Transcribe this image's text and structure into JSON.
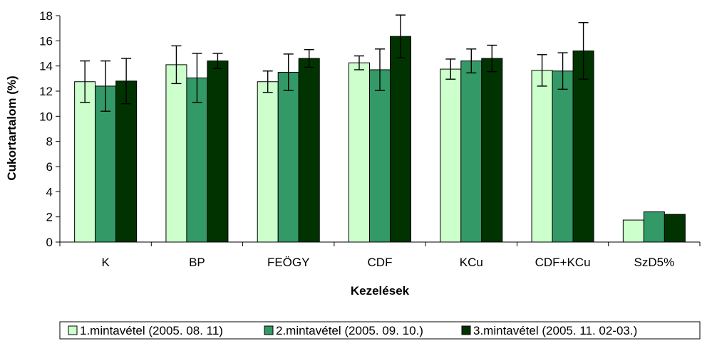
{
  "chart_data": {
    "type": "bar",
    "title": "",
    "xlabel": "Kezelések",
    "ylabel": "Cukortartalom (%)",
    "ylim": [
      0,
      18
    ],
    "yticks": [
      0,
      2,
      4,
      6,
      8,
      10,
      12,
      14,
      16,
      18
    ],
    "grid": false,
    "legend_position": "bottom",
    "categories": [
      "K",
      "BP",
      "FEÖGY",
      "CDF",
      "KCu",
      "CDF+KCu",
      "SzD5%"
    ],
    "series": [
      {
        "name": "1.mintavétel (2005. 08. 11)",
        "color": "#ccffcc",
        "values": [
          12.75,
          14.1,
          12.75,
          14.25,
          13.75,
          13.65,
          1.75
        ],
        "error": [
          1.65,
          1.5,
          0.85,
          0.55,
          0.8,
          1.25,
          null
        ]
      },
      {
        "name": "2.mintavétel (2005. 09. 10.)",
        "color": "#339966",
        "values": [
          12.4,
          13.05,
          13.5,
          13.7,
          14.4,
          13.6,
          2.4
        ],
        "error": [
          2.0,
          1.95,
          1.45,
          1.65,
          0.95,
          1.45,
          null
        ]
      },
      {
        "name": "3.mintavétel (2005. 11. 02-03.)",
        "color": "#003300",
        "values": [
          12.8,
          14.4,
          14.6,
          16.35,
          14.6,
          15.2,
          2.2
        ],
        "error": [
          1.8,
          0.6,
          0.7,
          1.7,
          1.05,
          2.25,
          null
        ]
      }
    ]
  }
}
